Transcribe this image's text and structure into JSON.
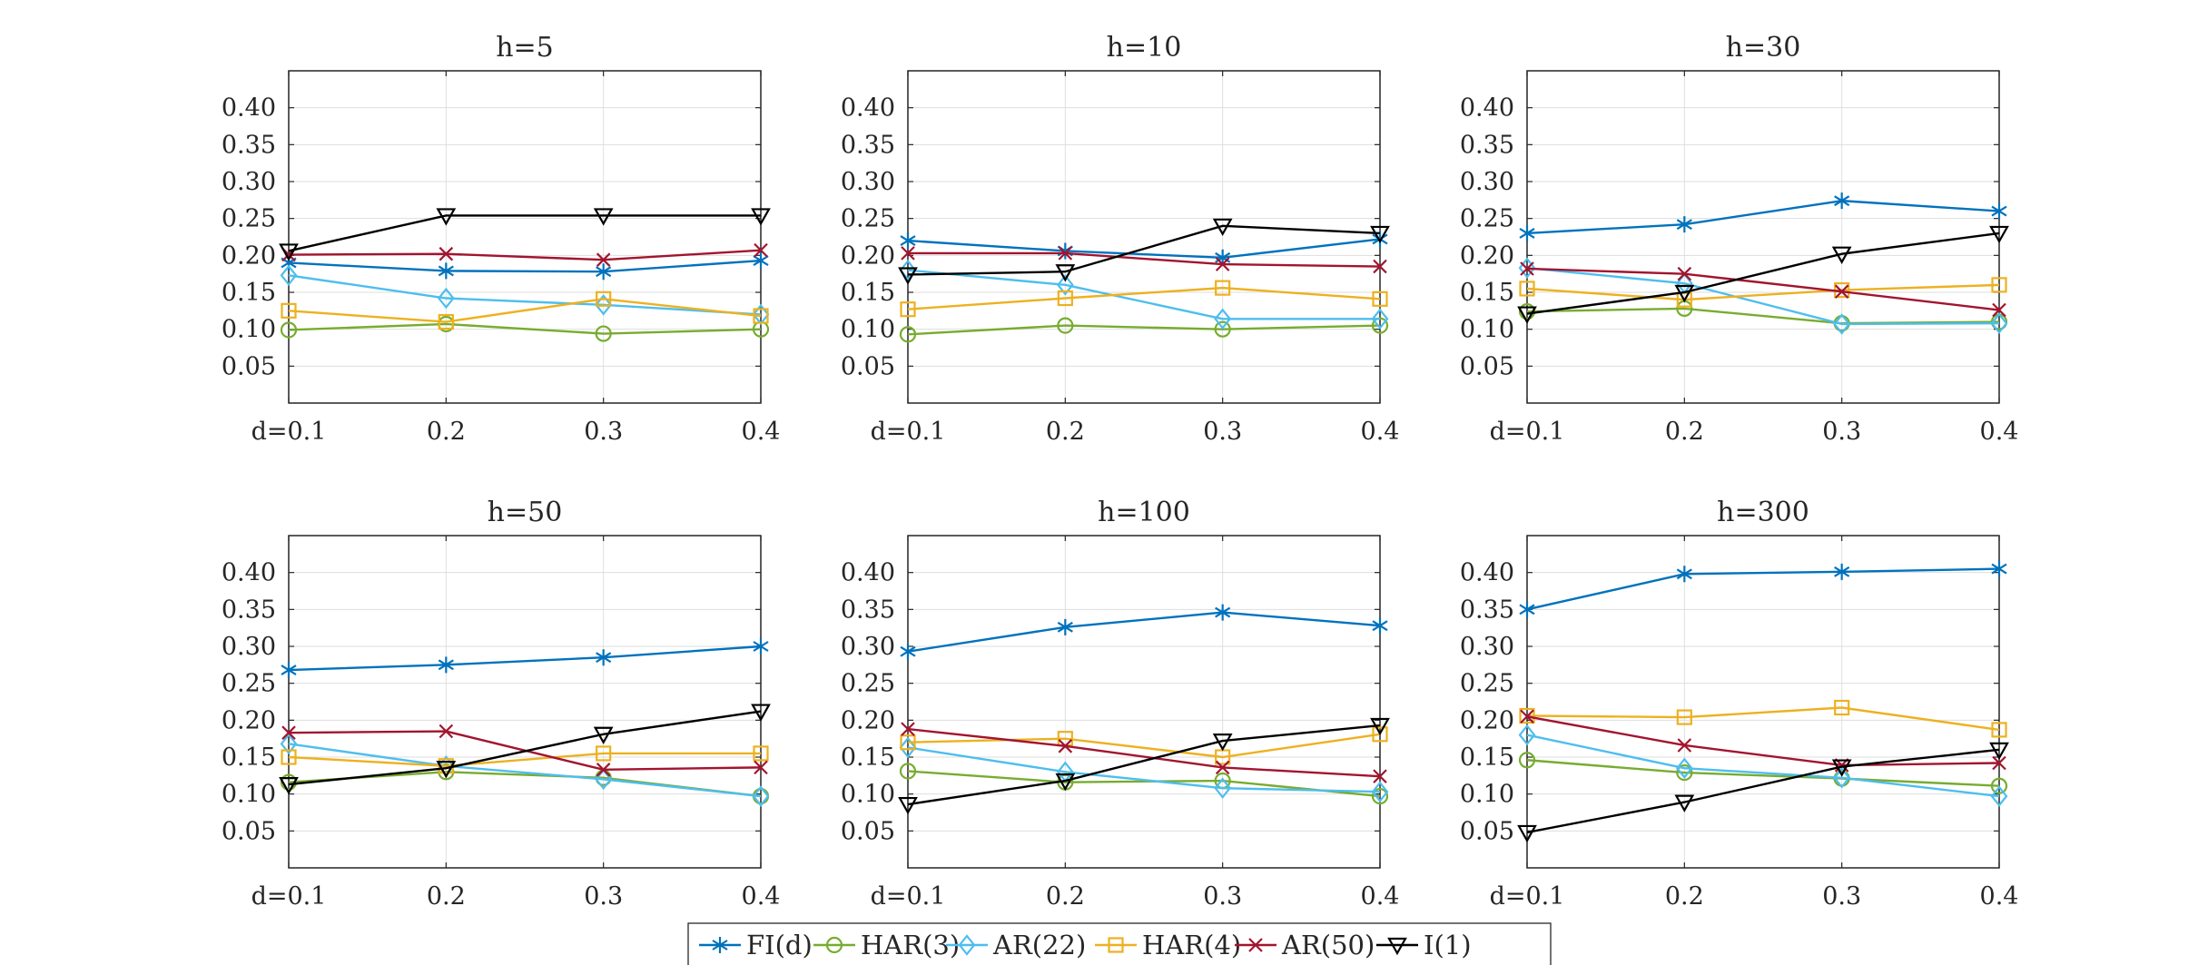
{
  "chart_data": {
    "type": "line",
    "xlim": [
      0.1,
      0.4
    ],
    "ylim": [
      0,
      0.45
    ],
    "grid": true,
    "legend_position": "bottom-center",
    "x": [
      0.1,
      0.2,
      0.3,
      0.4
    ],
    "x_tick_labels": [
      "d=0.1",
      "0.2",
      "0.3",
      "0.4"
    ],
    "y_ticks": [
      0.05,
      0.1,
      0.15,
      0.2,
      0.25,
      0.3,
      0.35,
      0.4
    ],
    "y_tick_labels": [
      "0.05",
      "0.10",
      "0.15",
      "0.20",
      "0.25",
      "0.30",
      "0.35",
      "0.40"
    ],
    "series_style": [
      {
        "name": "FI(d)",
        "color": "#0072BD",
        "marker": "asterisk"
      },
      {
        "name": "HAR(3)",
        "color": "#77AC30",
        "marker": "circle"
      },
      {
        "name": "AR(22)",
        "color": "#4DBEEE",
        "marker": "diamond"
      },
      {
        "name": "HAR(4)",
        "color": "#EDB120",
        "marker": "square"
      },
      {
        "name": "AR(50)",
        "color": "#A2142F",
        "marker": "x"
      },
      {
        "name": "I(1)",
        "color": "#000000",
        "marker": "triangle-down"
      }
    ],
    "panels": [
      {
        "title": "h=5",
        "series": [
          {
            "name": "FI(d)",
            "values": [
              0.19,
              0.179,
              0.178,
              0.193
            ]
          },
          {
            "name": "HAR(3)",
            "values": [
              0.099,
              0.107,
              0.094,
              0.1
            ]
          },
          {
            "name": "AR(22)",
            "values": [
              0.173,
              0.142,
              0.133,
              0.12
            ]
          },
          {
            "name": "HAR(4)",
            "values": [
              0.125,
              0.11,
              0.141,
              0.118
            ]
          },
          {
            "name": "AR(50)",
            "values": [
              0.201,
              0.202,
              0.194,
              0.207
            ]
          },
          {
            "name": "I(1)",
            "values": [
              0.206,
              0.254,
              0.254,
              0.254
            ]
          }
        ]
      },
      {
        "title": "h=10",
        "series": [
          {
            "name": "FI(d)",
            "values": [
              0.22,
              0.206,
              0.197,
              0.222
            ]
          },
          {
            "name": "HAR(3)",
            "values": [
              0.093,
              0.105,
              0.1,
              0.105
            ]
          },
          {
            "name": "AR(22)",
            "values": [
              0.18,
              0.16,
              0.114,
              0.114
            ]
          },
          {
            "name": "HAR(4)",
            "values": [
              0.127,
              0.142,
              0.156,
              0.141
            ]
          },
          {
            "name": "AR(50)",
            "values": [
              0.203,
              0.203,
              0.188,
              0.185
            ]
          },
          {
            "name": "I(1)",
            "values": [
              0.174,
              0.178,
              0.24,
              0.23
            ]
          }
        ]
      },
      {
        "title": "h=30",
        "series": [
          {
            "name": "FI(d)",
            "values": [
              0.23,
              0.242,
              0.274,
              0.26
            ]
          },
          {
            "name": "HAR(3)",
            "values": [
              0.124,
              0.128,
              0.108,
              0.11
            ]
          },
          {
            "name": "AR(22)",
            "values": [
              0.183,
              0.162,
              0.107,
              0.108
            ]
          },
          {
            "name": "HAR(4)",
            "values": [
              0.155,
              0.14,
              0.153,
              0.16
            ]
          },
          {
            "name": "AR(50)",
            "values": [
              0.182,
              0.175,
              0.151,
              0.126
            ]
          },
          {
            "name": "I(1)",
            "values": [
              0.121,
              0.15,
              0.202,
              0.23
            ]
          }
        ]
      },
      {
        "title": "h=50",
        "series": [
          {
            "name": "FI(d)",
            "values": [
              0.268,
              0.275,
              0.285,
              0.3
            ]
          },
          {
            "name": "HAR(3)",
            "values": [
              0.116,
              0.13,
              0.122,
              0.097
            ]
          },
          {
            "name": "AR(22)",
            "values": [
              0.168,
              0.138,
              0.12,
              0.097
            ]
          },
          {
            "name": "HAR(4)",
            "values": [
              0.15,
              0.138,
              0.155,
              0.155
            ]
          },
          {
            "name": "AR(50)",
            "values": [
              0.183,
              0.185,
              0.133,
              0.136
            ]
          },
          {
            "name": "I(1)",
            "values": [
              0.113,
              0.135,
              0.181,
              0.212
            ]
          }
        ]
      },
      {
        "title": "h=100",
        "series": [
          {
            "name": "FI(d)",
            "values": [
              0.293,
              0.326,
              0.346,
              0.328
            ]
          },
          {
            "name": "HAR(3)",
            "values": [
              0.131,
              0.116,
              0.118,
              0.097
            ]
          },
          {
            "name": "AR(22)",
            "values": [
              0.163,
              0.13,
              0.108,
              0.103
            ]
          },
          {
            "name": "HAR(4)",
            "values": [
              0.17,
              0.175,
              0.15,
              0.181
            ]
          },
          {
            "name": "AR(50)",
            "values": [
              0.188,
              0.165,
              0.136,
              0.124
            ]
          },
          {
            "name": "I(1)",
            "values": [
              0.086,
              0.118,
              0.172,
              0.193
            ]
          }
        ]
      },
      {
        "title": "h=300",
        "series": [
          {
            "name": "FI(d)",
            "values": [
              0.35,
              0.398,
              0.401,
              0.405
            ]
          },
          {
            "name": "HAR(3)",
            "values": [
              0.146,
              0.129,
              0.121,
              0.111
            ]
          },
          {
            "name": "AR(22)",
            "values": [
              0.18,
              0.135,
              0.122,
              0.097
            ]
          },
          {
            "name": "HAR(4)",
            "values": [
              0.206,
              0.204,
              0.217,
              0.187
            ]
          },
          {
            "name": "AR(50)",
            "values": [
              0.205,
              0.166,
              0.139,
              0.142
            ]
          },
          {
            "name": "I(1)",
            "values": [
              0.048,
              0.089,
              0.137,
              0.16
            ]
          }
        ]
      }
    ]
  }
}
